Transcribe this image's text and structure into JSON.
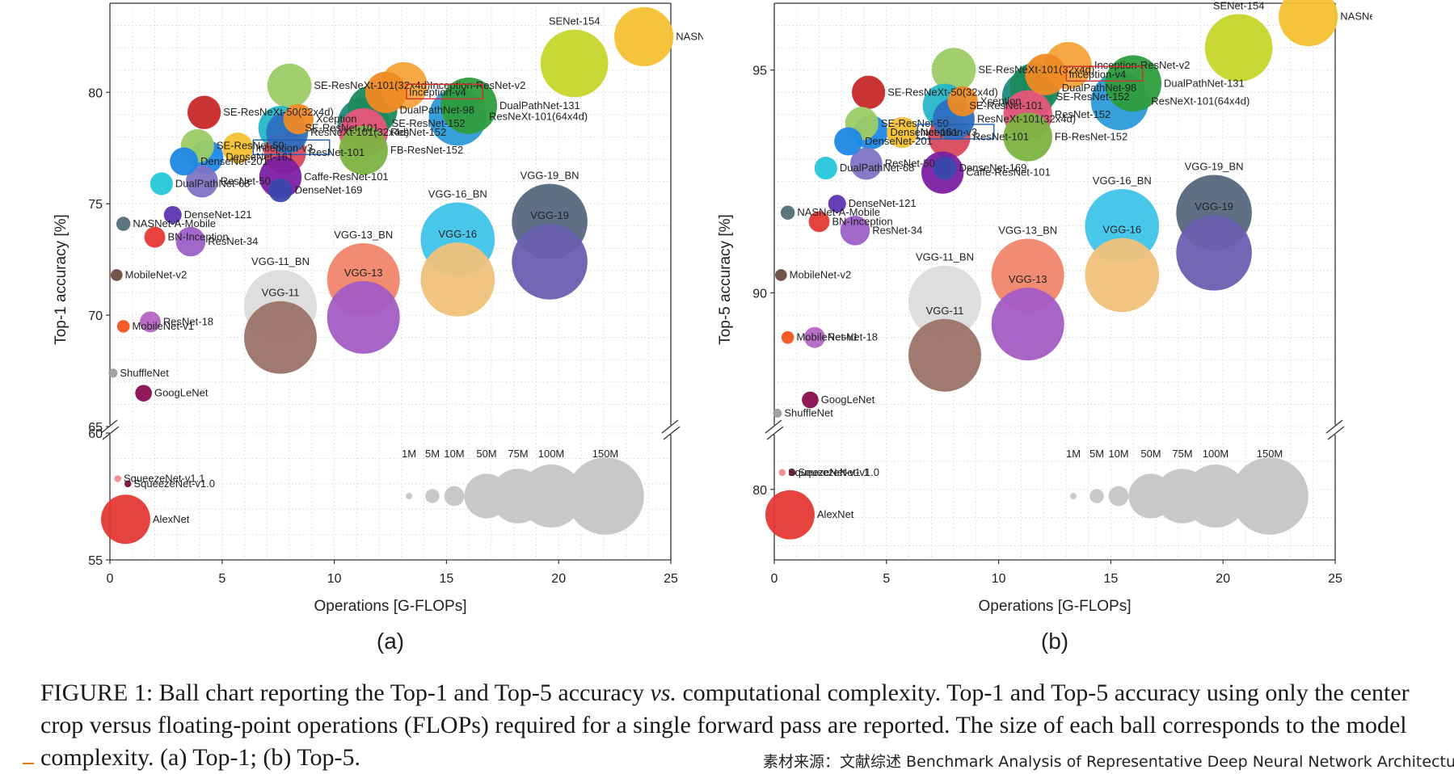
{
  "chart_data": [
    {
      "type": "scatter",
      "panel_label": "(a)",
      "xlabel": "Operations [G-FLOPs]",
      "ylabel": "Top-1 accuracy [%]",
      "xlim": [
        0,
        25
      ],
      "ylim_upper": [
        65,
        84
      ],
      "ylim_lower": [
        55,
        60
      ],
      "x_ticks": [
        "0",
        "5",
        "10",
        "15",
        "20",
        "25"
      ],
      "y_ticks_upper": [
        "65",
        "70",
        "75",
        "80"
      ],
      "y_ticks_lower": [
        "55",
        "60"
      ],
      "size_legend": {
        "labels": [
          "1M",
          "5M",
          "10M",
          "50M",
          "75M",
          "100M",
          "150M"
        ],
        "params": [
          1,
          5,
          10,
          50,
          75,
          100,
          150
        ]
      },
      "points": [
        {
          "name": "NASNet-A-Large",
          "x": 23.8,
          "y": 82.5,
          "params": 88,
          "color": "#f4c031"
        },
        {
          "name": "SENet-154",
          "x": 20.7,
          "y": 81.3,
          "params": 115,
          "color": "#c6d62a"
        },
        {
          "name": "SE-ResNeXt-101(32x4d)",
          "x": 8.0,
          "y": 80.3,
          "params": 49,
          "color": "#9ccc65"
        },
        {
          "name": "Inception-ResNet-v2",
          "x": 13.1,
          "y": 80.3,
          "params": 56,
          "color": "#f6a33a"
        },
        {
          "name": "Inception-v4",
          "x": 12.3,
          "y": 80.0,
          "params": 43,
          "color": "#f08a24",
          "boxed": true,
          "box_color": "#d32f2f"
        },
        {
          "name": "DualPathNet-131",
          "x": 16.0,
          "y": 79.4,
          "params": 80,
          "color": "#2e9d3c"
        },
        {
          "name": "SE-ResNeXt-50(32x4d)",
          "x": 4.2,
          "y": 79.1,
          "params": 28,
          "color": "#c62828"
        },
        {
          "name": "DualPathNet-98",
          "x": 11.7,
          "y": 79.2,
          "params": 62,
          "color": "#1b8a5a"
        },
        {
          "name": "ResNeXt-101(64x4d)",
          "x": 15.5,
          "y": 78.9,
          "params": 84,
          "color": "#2c9ad8"
        },
        {
          "name": "Xception",
          "x": 8.4,
          "y": 78.8,
          "params": 23,
          "color": "#f08a24"
        },
        {
          "name": "SE-ResNet-152",
          "x": 11.3,
          "y": 78.6,
          "params": 67,
          "color": "#1f8a80"
        },
        {
          "name": "SE-ResNet-101",
          "x": 7.6,
          "y": 78.4,
          "params": 49,
          "color": "#26b5c9"
        },
        {
          "name": "ResNeXt-101(32x4d)",
          "x": 7.9,
          "y": 78.2,
          "params": 44,
          "color": "#2c6fc0"
        },
        {
          "name": "ResNet-152",
          "x": 11.3,
          "y": 78.2,
          "params": 60,
          "color": "#e8557a"
        },
        {
          "name": "FB-ResNet-152",
          "x": 11.3,
          "y": 77.4,
          "params": 60,
          "color": "#7cb342"
        },
        {
          "name": "SE-ResNet-50",
          "x": 3.9,
          "y": 77.6,
          "params": 28,
          "color": "#9ccc65"
        },
        {
          "name": "Inception-v3",
          "x": 5.7,
          "y": 77.5,
          "params": 24,
          "color": "#f4c031",
          "boxed": true,
          "box_color": "#1e5fb4"
        },
        {
          "name": "ResNet-101",
          "x": 7.8,
          "y": 77.3,
          "params": 45,
          "color": "#d84a5c"
        },
        {
          "name": "DenseNet-161",
          "x": 4.3,
          "y": 77.1,
          "params": 29,
          "color": "#1e88e5"
        },
        {
          "name": "DenseNet-201",
          "x": 3.3,
          "y": 76.9,
          "params": 20,
          "color": "#1e88e5"
        },
        {
          "name": "Caffe-ResNet-101",
          "x": 7.6,
          "y": 76.2,
          "params": 45,
          "color": "#7b1fa2"
        },
        {
          "name": "DualPathNet-68",
          "x": 2.3,
          "y": 75.9,
          "params": 13,
          "color": "#26c6da"
        },
        {
          "name": "ResNet-50",
          "x": 4.1,
          "y": 76.0,
          "params": 26,
          "color": "#7e74c4"
        },
        {
          "name": "DenseNet-169",
          "x": 7.6,
          "y": 75.6,
          "params": 14,
          "color": "#3949ab"
        },
        {
          "name": "DenseNet-121",
          "x": 2.8,
          "y": 74.5,
          "params": 8,
          "color": "#5e35b1"
        },
        {
          "name": "NASNet-A-Mobile",
          "x": 0.6,
          "y": 74.1,
          "params": 5,
          "color": "#546e7a"
        },
        {
          "name": "BN-Inception",
          "x": 2.0,
          "y": 73.5,
          "params": 11,
          "color": "#e53935"
        },
        {
          "name": "ResNet-34",
          "x": 3.6,
          "y": 73.3,
          "params": 22,
          "color": "#9c5fc8"
        },
        {
          "name": "MobileNet-v2",
          "x": 0.3,
          "y": 71.8,
          "params": 3.5,
          "color": "#6d4c41"
        },
        {
          "name": "VGG-19_BN",
          "x": 19.6,
          "y": 74.2,
          "params": 144,
          "color": "#56687d"
        },
        {
          "name": "VGG-16_BN",
          "x": 15.5,
          "y": 73.4,
          "params": 138,
          "color": "#3fc4ea"
        },
        {
          "name": "VGG-19",
          "x": 19.6,
          "y": 72.4,
          "params": 144,
          "color": "#6a5fb0"
        },
        {
          "name": "VGG-16",
          "x": 15.5,
          "y": 71.6,
          "params": 138,
          "color": "#f0c27a"
        },
        {
          "name": "VGG-13_BN",
          "x": 11.3,
          "y": 71.6,
          "params": 133,
          "color": "#f0856a"
        },
        {
          "name": "VGG-11_BN",
          "x": 7.6,
          "y": 70.4,
          "params": 133,
          "color": "#dcdcdc"
        },
        {
          "name": "VGG-13",
          "x": 11.3,
          "y": 69.9,
          "params": 133,
          "color": "#a35cc4"
        },
        {
          "name": "VGG-11",
          "x": 7.6,
          "y": 69.0,
          "params": 133,
          "color": "#9b7369"
        },
        {
          "name": "ResNet-18",
          "x": 1.8,
          "y": 69.7,
          "params": 11,
          "color": "#b565c4"
        },
        {
          "name": "MobileNet-v1",
          "x": 0.6,
          "y": 69.5,
          "params": 4,
          "color": "#f4511e"
        },
        {
          "name": "ShuffleNet",
          "x": 0.14,
          "y": 67.4,
          "params": 2,
          "color": "#9e9e9e"
        },
        {
          "name": "GoogLeNet",
          "x": 1.5,
          "y": 66.5,
          "params": 7,
          "color": "#880e4f"
        },
        {
          "name": "SqueezeNet-v1.1",
          "x": 0.35,
          "y": 58.2,
          "params": 1.2,
          "color": "#f48a8a"
        },
        {
          "name": "SqueezeNet-v1.0",
          "x": 0.8,
          "y": 58.0,
          "params": 1.2,
          "color": "#7b1040"
        },
        {
          "name": "AlexNet",
          "x": 0.7,
          "y": 56.6,
          "params": 61,
          "color": "#e53935"
        }
      ]
    },
    {
      "type": "scatter",
      "panel_label": "(b)",
      "xlabel": "Operations [G-FLOPs]",
      "ylabel": "Top-5 accuracy [%]",
      "xlim": [
        0,
        25
      ],
      "ylim_upper": [
        87,
        96.5
      ],
      "ylim_lower": [
        77.5,
        82
      ],
      "x_ticks": [
        "0",
        "5",
        "10",
        "15",
        "20",
        "25"
      ],
      "y_ticks_upper": [
        "90",
        "95"
      ],
      "y_ticks_lower": [
        "80"
      ],
      "size_legend": {
        "labels": [
          "1M",
          "5M",
          "10M",
          "50M",
          "75M",
          "100M",
          "150M"
        ],
        "params": [
          1,
          5,
          10,
          50,
          75,
          100,
          150
        ]
      },
      "points": [
        {
          "name": "NASNet-A-Large",
          "x": 23.8,
          "y": 96.2,
          "params": 88,
          "color": "#f4c031"
        },
        {
          "name": "SENet-154",
          "x": 20.7,
          "y": 95.5,
          "params": 115,
          "color": "#c6d62a"
        },
        {
          "name": "SE-ResNeXt-101(32x4d)",
          "x": 8.0,
          "y": 95.0,
          "params": 49,
          "color": "#9ccc65"
        },
        {
          "name": "Inception-ResNet-v2",
          "x": 13.1,
          "y": 95.1,
          "params": 56,
          "color": "#f6a33a"
        },
        {
          "name": "Inception-v4",
          "x": 12.1,
          "y": 94.9,
          "params": 43,
          "color": "#f08a24",
          "boxed": true,
          "box_color": "#d32f2f"
        },
        {
          "name": "DualPathNet-131",
          "x": 16.0,
          "y": 94.7,
          "params": 80,
          "color": "#2e9d3c"
        },
        {
          "name": "SE-ResNeXt-50(32x4d)",
          "x": 4.2,
          "y": 94.5,
          "params": 28,
          "color": "#c62828"
        },
        {
          "name": "DualPathNet-98",
          "x": 11.6,
          "y": 94.6,
          "params": 62,
          "color": "#1b8a5a"
        },
        {
          "name": "ResNeXt-101(64x4d)",
          "x": 15.4,
          "y": 94.3,
          "params": 84,
          "color": "#2c9ad8"
        },
        {
          "name": "Xception",
          "x": 8.4,
          "y": 94.3,
          "params": 23,
          "color": "#f08a24"
        },
        {
          "name": "SE-ResNet-152",
          "x": 11.3,
          "y": 94.4,
          "params": 67,
          "color": "#1f8a80"
        },
        {
          "name": "SE-ResNet-101",
          "x": 7.6,
          "y": 94.2,
          "params": 49,
          "color": "#26b5c9"
        },
        {
          "name": "ResNeXt-101(32x4d)",
          "x": 8.0,
          "y": 93.9,
          "params": 44,
          "color": "#2c6fc0"
        },
        {
          "name": "ResNet-152",
          "x": 11.3,
          "y": 94.0,
          "params": 60,
          "color": "#e8557a"
        },
        {
          "name": "FB-ResNet-152",
          "x": 11.3,
          "y": 93.5,
          "params": 60,
          "color": "#7cb342"
        },
        {
          "name": "SE-ResNet-50",
          "x": 3.9,
          "y": 93.8,
          "params": 28,
          "color": "#9ccc65"
        },
        {
          "name": "Inception-v3",
          "x": 5.7,
          "y": 93.6,
          "params": 24,
          "color": "#f4c031",
          "boxed": true,
          "box_color": "#1e5fb4"
        },
        {
          "name": "ResNet-101",
          "x": 7.8,
          "y": 93.5,
          "params": 45,
          "color": "#d84a5c"
        },
        {
          "name": "DenseNet-161",
          "x": 4.3,
          "y": 93.6,
          "params": 29,
          "color": "#1e88e5"
        },
        {
          "name": "DenseNet-201",
          "x": 3.3,
          "y": 93.4,
          "params": 20,
          "color": "#1e88e5"
        },
        {
          "name": "Caffe-ResNet-101",
          "x": 7.5,
          "y": 92.7,
          "params": 45,
          "color": "#7b1fa2"
        },
        {
          "name": "DualPathNet-68",
          "x": 2.3,
          "y": 92.8,
          "params": 13,
          "color": "#26c6da"
        },
        {
          "name": "ResNet-50",
          "x": 4.1,
          "y": 92.9,
          "params": 26,
          "color": "#7e74c4"
        },
        {
          "name": "DenseNet-169",
          "x": 7.6,
          "y": 92.8,
          "params": 14,
          "color": "#3949ab"
        },
        {
          "name": "DenseNet-121",
          "x": 2.8,
          "y": 92.0,
          "params": 8,
          "color": "#5e35b1"
        },
        {
          "name": "NASNet-A-Mobile",
          "x": 0.6,
          "y": 91.8,
          "params": 5,
          "color": "#546e7a"
        },
        {
          "name": "BN-Inception",
          "x": 2.0,
          "y": 91.6,
          "params": 11,
          "color": "#e53935"
        },
        {
          "name": "ResNet-34",
          "x": 3.6,
          "y": 91.4,
          "params": 22,
          "color": "#9c5fc8"
        },
        {
          "name": "MobileNet-v2",
          "x": 0.3,
          "y": 90.4,
          "params": 3.5,
          "color": "#6d4c41"
        },
        {
          "name": "VGG-19_BN",
          "x": 19.6,
          "y": 91.8,
          "params": 144,
          "color": "#56687d"
        },
        {
          "name": "VGG-16_BN",
          "x": 15.5,
          "y": 91.5,
          "params": 138,
          "color": "#3fc4ea"
        },
        {
          "name": "VGG-19",
          "x": 19.6,
          "y": 90.9,
          "params": 144,
          "color": "#6a5fb0"
        },
        {
          "name": "VGG-16",
          "x": 15.5,
          "y": 90.4,
          "params": 138,
          "color": "#f0c27a"
        },
        {
          "name": "VGG-13_BN",
          "x": 11.3,
          "y": 90.4,
          "params": 133,
          "color": "#f0856a"
        },
        {
          "name": "VGG-11_BN",
          "x": 7.6,
          "y": 89.8,
          "params": 133,
          "color": "#dcdcdc"
        },
        {
          "name": "VGG-13",
          "x": 11.3,
          "y": 89.3,
          "params": 133,
          "color": "#a35cc4"
        },
        {
          "name": "VGG-11",
          "x": 7.6,
          "y": 88.6,
          "params": 133,
          "color": "#9b7369"
        },
        {
          "name": "ResNet-18",
          "x": 1.8,
          "y": 89.0,
          "params": 11,
          "color": "#b565c4"
        },
        {
          "name": "MobileNet-v1",
          "x": 0.6,
          "y": 89.0,
          "params": 4,
          "color": "#f4511e"
        },
        {
          "name": "GoogLeNet",
          "x": 1.6,
          "y": 87.6,
          "params": 7,
          "color": "#880e4f"
        },
        {
          "name": "ShuffleNet",
          "x": 0.14,
          "y": 87.3,
          "params": 2,
          "color": "#9e9e9e"
        },
        {
          "name": "SqueezeNet-v1.1",
          "x": 0.35,
          "y": 80.6,
          "params": 1.2,
          "color": "#f48a8a"
        },
        {
          "name": "SqueezeNet-v1.0",
          "x": 0.8,
          "y": 80.6,
          "params": 1.2,
          "color": "#7b1040"
        },
        {
          "name": "AlexNet",
          "x": 0.7,
          "y": 79.1,
          "params": 61,
          "color": "#e53935"
        }
      ]
    }
  ],
  "caption": {
    "prefix": "FIGURE 1: Ball chart reporting the Top-1 and Top-5 accuracy ",
    "vs": "vs.",
    "suffix": " computational complexity. Top-1 and Top-5 accuracy using only the center crop versus floating-point operations (FLOPs) required for a single forward pass are reported. The size of each ball corresponds to the model complexity. (a) Top-1; (b) Top-5."
  },
  "source_note": "素材来源：文献综述 Benchmark Analysis of Representative Deep Neural Network Architecture"
}
